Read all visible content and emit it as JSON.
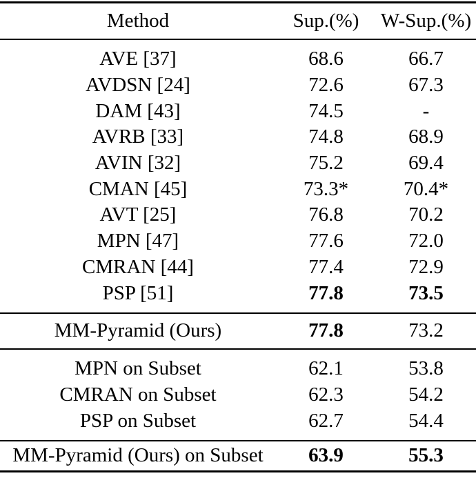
{
  "table": {
    "columns": [
      "Method",
      "Sup.(%)",
      "W-Sup.(%)"
    ],
    "main_rows": [
      {
        "method": "AVE [37]",
        "sup": "68.6",
        "wsup": "66.7",
        "bold": {
          "sup": false,
          "wsup": false
        }
      },
      {
        "method": "AVDSN [24]",
        "sup": "72.6",
        "wsup": "67.3",
        "bold": {
          "sup": false,
          "wsup": false
        }
      },
      {
        "method": "DAM [43]",
        "sup": "74.5",
        "wsup": "-",
        "bold": {
          "sup": false,
          "wsup": false
        }
      },
      {
        "method": "AVRB [33]",
        "sup": "74.8",
        "wsup": "68.9",
        "bold": {
          "sup": false,
          "wsup": false
        }
      },
      {
        "method": "AVIN [32]",
        "sup": "75.2",
        "wsup": "69.4",
        "bold": {
          "sup": false,
          "wsup": false
        }
      },
      {
        "method": "CMAN [45]",
        "sup": "73.3*",
        "wsup": "70.4*",
        "bold": {
          "sup": false,
          "wsup": false
        }
      },
      {
        "method": "AVT [25]",
        "sup": "76.8",
        "wsup": "70.2",
        "bold": {
          "sup": false,
          "wsup": false
        }
      },
      {
        "method": "MPN [47]",
        "sup": "77.6",
        "wsup": "72.0",
        "bold": {
          "sup": false,
          "wsup": false
        }
      },
      {
        "method": "CMRAN [44]",
        "sup": "77.4",
        "wsup": "72.9",
        "bold": {
          "sup": false,
          "wsup": false
        }
      },
      {
        "method": "PSP [51]",
        "sup": "77.8",
        "wsup": "73.5",
        "bold": {
          "sup": true,
          "wsup": true
        }
      }
    ],
    "ours_row": {
      "method": "MM-Pyramid (Ours)",
      "sup": "77.8",
      "wsup": "73.2",
      "bold": {
        "sup": true,
        "wsup": false
      }
    },
    "subset_rows": [
      {
        "method": "MPN on Subset",
        "sup": "62.1",
        "wsup": "53.8",
        "bold": {
          "sup": false,
          "wsup": false
        }
      },
      {
        "method": "CMRAN on Subset",
        "sup": "62.3",
        "wsup": "54.2",
        "bold": {
          "sup": false,
          "wsup": false
        }
      },
      {
        "method": "PSP on Subset",
        "sup": "62.7",
        "wsup": "54.4",
        "bold": {
          "sup": false,
          "wsup": false
        }
      }
    ],
    "ours_subset_row": {
      "method": "MM-Pyramid (Ours) on Subset",
      "sup": "63.9",
      "wsup": "55.3",
      "bold": {
        "sup": true,
        "wsup": true
      }
    }
  },
  "colors": {
    "text": "#000000",
    "rule": "#000000",
    "background": "#ffffff"
  }
}
